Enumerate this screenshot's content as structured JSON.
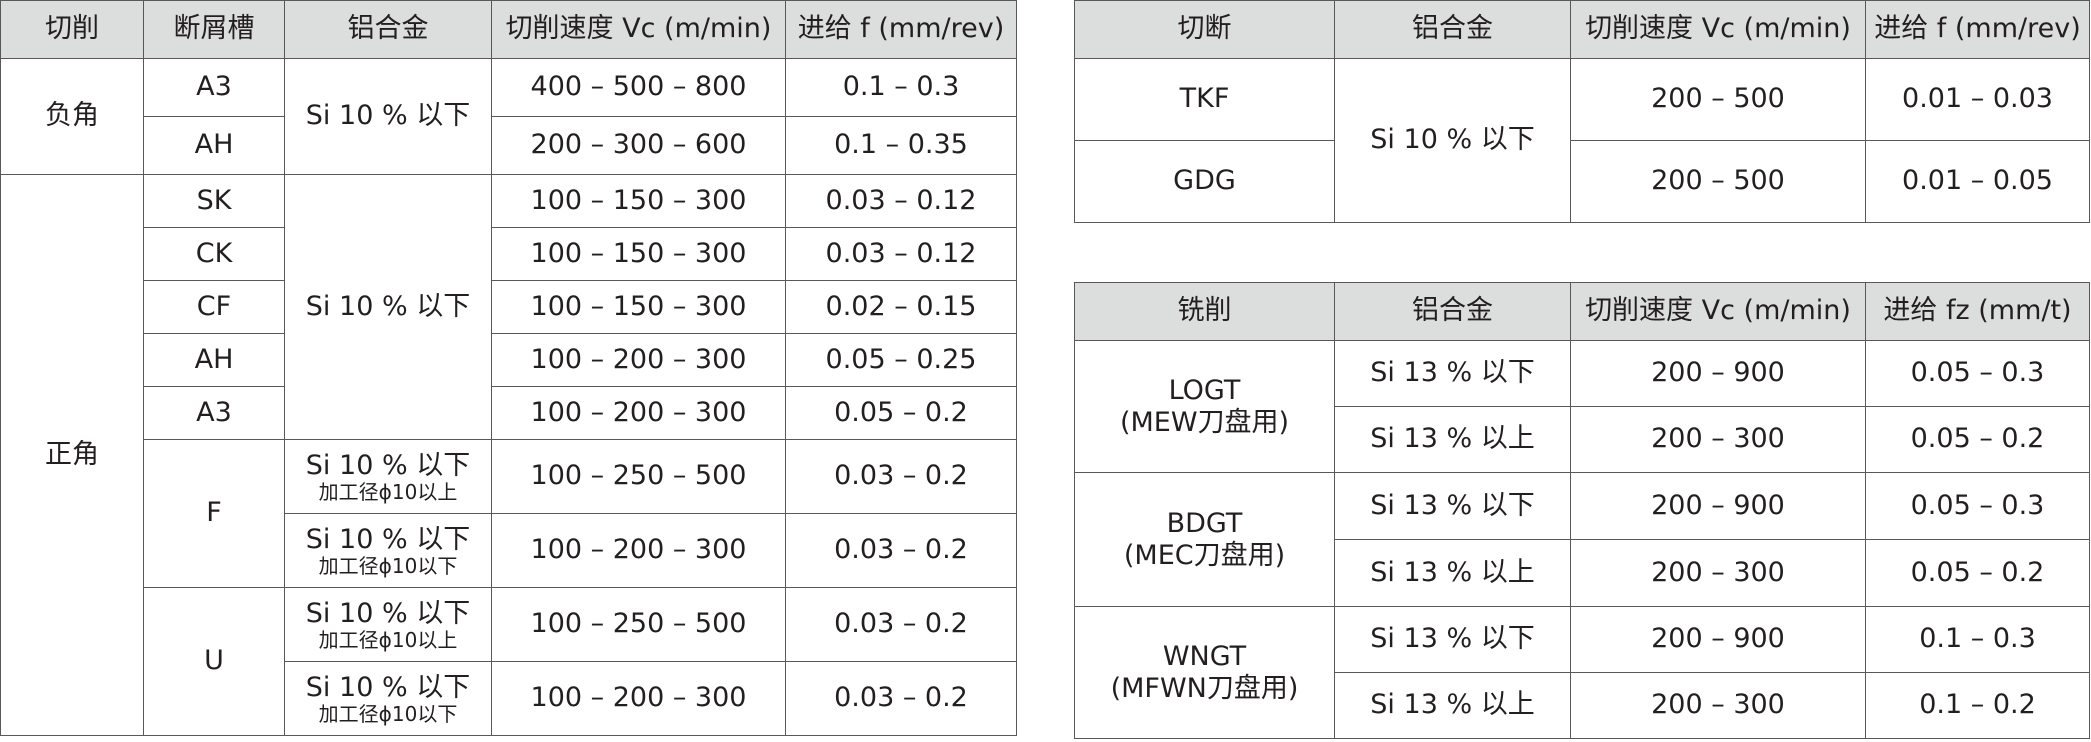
{
  "left_table": {
    "headers": [
      "切削",
      "断屑槽",
      "铝合金",
      "切削速度 Vc (m/min)",
      "进给 f (mm/rev)"
    ],
    "neg_label": "负角",
    "neg_alloy": "Si 10 % 以下",
    "neg_rows": [
      {
        "grade": "A3",
        "speed": "400 – 500 – 800",
        "feed": "0.1 – 0.3"
      },
      {
        "grade": "AH",
        "speed": "200 – 300 – 600",
        "feed": "0.1 – 0.35"
      }
    ],
    "pos_label": "正角",
    "pos_alloy": "Si 10 % 以下",
    "pos_rows": [
      {
        "grade": "SK",
        "speed": "100 – 150 – 300",
        "feed": "0.03 – 0.12"
      },
      {
        "grade": "CK",
        "speed": "100 – 150 – 300",
        "feed": "0.03 – 0.12"
      },
      {
        "grade": "CF",
        "speed": "100 – 150 – 300",
        "feed": "0.02 – 0.15"
      },
      {
        "grade": "AH",
        "speed": "100 – 200 – 300",
        "feed": "0.05 – 0.25"
      },
      {
        "grade": "A3",
        "speed": "100 – 200 – 300",
        "feed": "0.05 – 0.2"
      }
    ],
    "f_grade": "F",
    "f_rows": [
      {
        "alloy": "Si 10 % 以下",
        "note": "加工径ϕ10以上",
        "speed": "100 – 250 – 500",
        "feed": "0.03 – 0.2"
      },
      {
        "alloy": "Si 10 % 以下",
        "note": "加工径ϕ10以下",
        "speed": "100 – 200 – 300",
        "feed": "0.03 – 0.2"
      }
    ],
    "u_grade": "U",
    "u_rows": [
      {
        "alloy": "Si 10 % 以下",
        "note": "加工径ϕ10以上",
        "speed": "100 – 250 – 500",
        "feed": "0.03 – 0.2"
      },
      {
        "alloy": "Si 10 % 以下",
        "note": "加工径ϕ10以下",
        "speed": "100 – 200 – 300",
        "feed": "0.03 – 0.2"
      }
    ]
  },
  "cutoff_table": {
    "headers": [
      "切断",
      "铝合金",
      "切削速度 Vc (m/min)",
      "进给 f (mm/rev)"
    ],
    "alloy": "Si 10 % 以下",
    "rows": [
      {
        "grade": "TKF",
        "speed": "200 – 500",
        "feed": "0.01 – 0.03"
      },
      {
        "grade": "GDG",
        "speed": "200 – 500",
        "feed": "0.01 – 0.05"
      }
    ]
  },
  "milling_table": {
    "headers": [
      "铣削",
      "铝合金",
      "切削速度 Vc (m/min)",
      "进给 fz (mm/t)"
    ],
    "groups": [
      {
        "name": "LOGT",
        "cutter": "(MEW刀盘用)",
        "rows": [
          {
            "alloy": "Si 13 % 以下",
            "speed": "200 – 900",
            "feed": "0.05 – 0.3"
          },
          {
            "alloy": "Si 13 % 以上",
            "speed": "200 – 300",
            "feed": "0.05 – 0.2"
          }
        ]
      },
      {
        "name": "BDGT",
        "cutter": "(MEC刀盘用)",
        "rows": [
          {
            "alloy": "Si 13 % 以下",
            "speed": "200 – 900",
            "feed": "0.05 – 0.3"
          },
          {
            "alloy": "Si 13 % 以上",
            "speed": "200 – 300",
            "feed": "0.05 – 0.2"
          }
        ]
      },
      {
        "name": "WNGT",
        "cutter": "(MFWN刀盘用)",
        "rows": [
          {
            "alloy": "Si 13 % 以下",
            "speed": "200 – 900",
            "feed": "0.1 – 0.3"
          },
          {
            "alloy": "Si 13 % 以上",
            "speed": "200 – 300",
            "feed": "0.1 – 0.2"
          }
        ]
      }
    ]
  }
}
